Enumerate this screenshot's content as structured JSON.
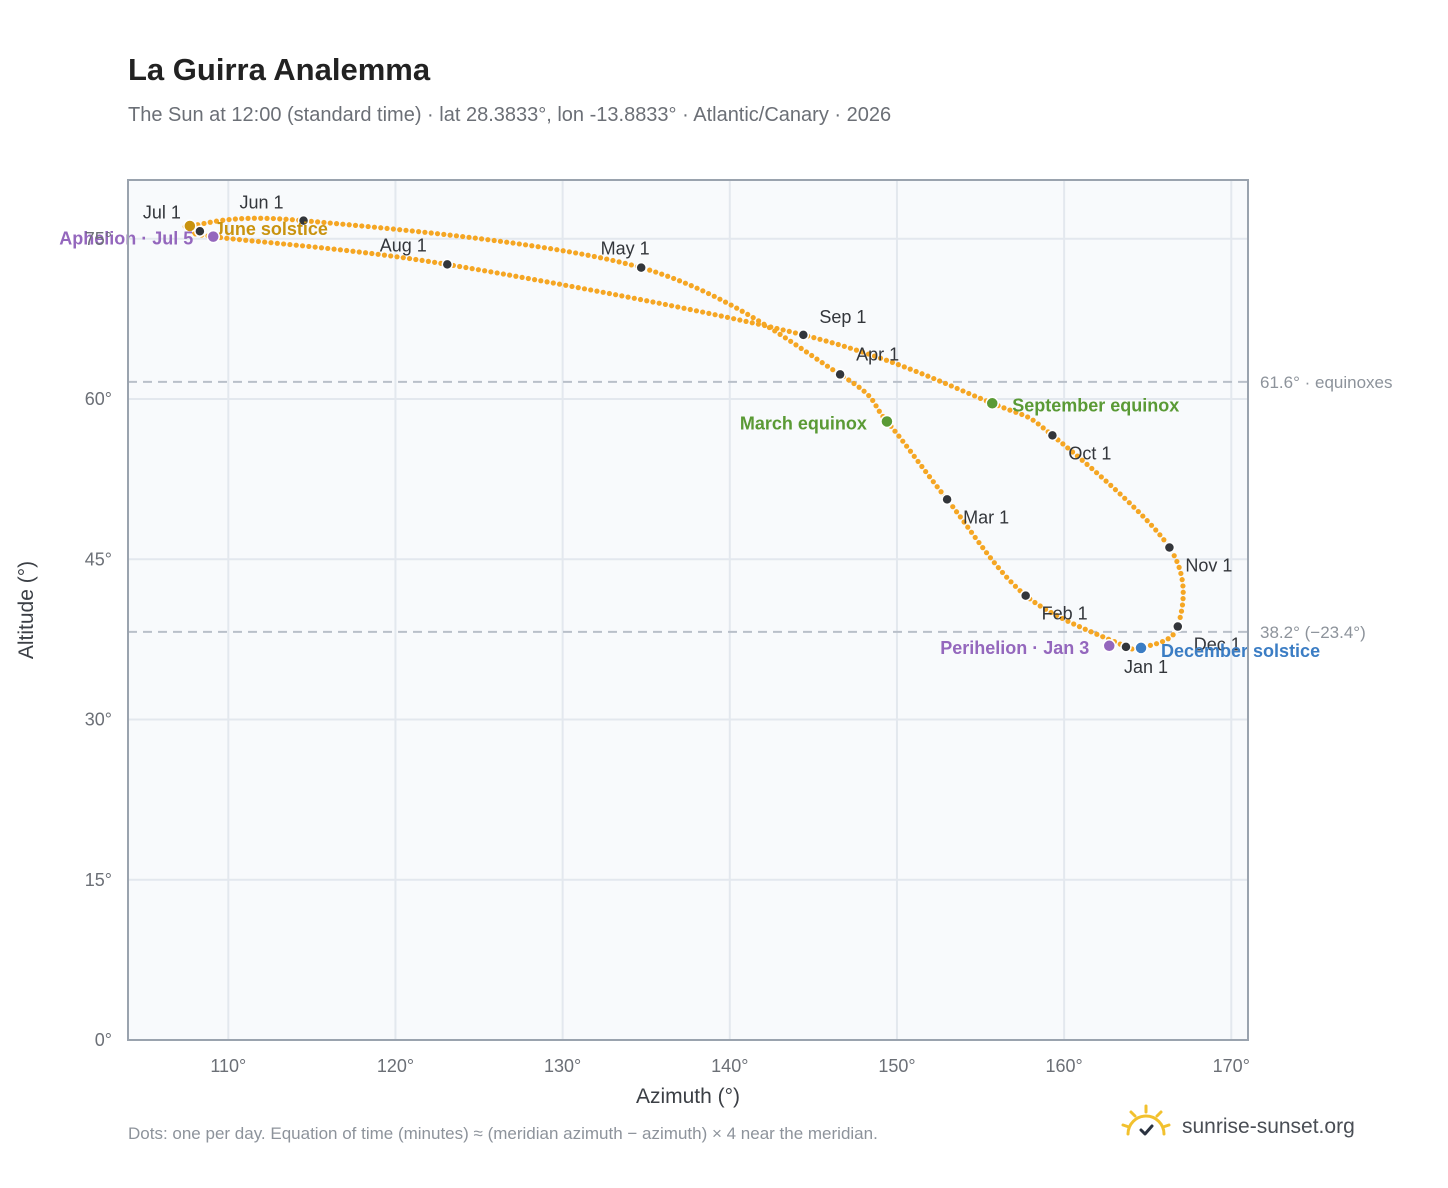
{
  "header": {
    "title": "La Guirra Analemma",
    "subtitle": "The Sun at 12:00 (standard time) · lat 28.3833°, lon -13.8833° · Atlantic/Canary · 2026"
  },
  "footer": {
    "note": "Dots: one per day. Equation of time (minutes) ≈ (meridian azimuth − azimuth) × 4 near the meridian.",
    "brand": "sunrise-sunset.org"
  },
  "colors": {
    "curve": "#f5a623",
    "month_marker": "#33363b",
    "equinox": "#5a9a35",
    "june_solstice": "#c9930f",
    "december_solstice": "#3b7dc4",
    "apsis": "#9467bd",
    "plot_bg": "#f8fafc",
    "grid": "#e3e8ee",
    "frame": "#9aa3ae",
    "reference_line": "#b9c0c9"
  },
  "chart_data": {
    "type": "scatter",
    "title": "La Guirra Analemma",
    "xlabel": "Azimuth (°)",
    "ylabel": "Altitude (°)",
    "xlim": [
      104,
      171
    ],
    "ylim": [
      0,
      80.5
    ],
    "x_ticks": [
      110,
      120,
      130,
      140,
      150,
      160,
      170
    ],
    "x_tick_labels": [
      "110°",
      "120°",
      "130°",
      "140°",
      "150°",
      "160°",
      "170°"
    ],
    "y_ticks": [
      0,
      15,
      30,
      45,
      60,
      75
    ],
    "y_tick_labels": [
      "0°",
      "15°",
      "30°",
      "45°",
      "60°",
      "75°"
    ],
    "grid": true,
    "reference_lines": [
      {
        "y": 61.6,
        "label": "61.6° · equinoxes"
      },
      {
        "y": 38.2,
        "label": "38.2° (−23.4°)"
      }
    ],
    "month_markers": [
      {
        "label": "Jan 1",
        "x": 163.7,
        "y": 36.8
      },
      {
        "label": "Feb 1",
        "x": 157.7,
        "y": 41.6
      },
      {
        "label": "Mar 1",
        "x": 153.0,
        "y": 50.6
      },
      {
        "label": "Apr 1",
        "x": 146.6,
        "y": 62.3
      },
      {
        "label": "May 1",
        "x": 134.7,
        "y": 72.3
      },
      {
        "label": "Jun 1",
        "x": 114.5,
        "y": 76.7
      },
      {
        "label": "Jul 1",
        "x": 108.3,
        "y": 75.7
      },
      {
        "label": "Aug 1",
        "x": 123.1,
        "y": 72.6
      },
      {
        "label": "Sep 1",
        "x": 144.4,
        "y": 66.0
      },
      {
        "label": "Oct 1",
        "x": 159.3,
        "y": 56.6
      },
      {
        "label": "Nov 1",
        "x": 166.3,
        "y": 46.1
      },
      {
        "label": "Dec 1",
        "x": 166.8,
        "y": 38.7
      }
    ],
    "events": [
      {
        "label": "March equinox",
        "x": 149.4,
        "y": 57.9,
        "color": "#5a9a35"
      },
      {
        "label": "June solstice",
        "x": 107.7,
        "y": 76.2,
        "color": "#c9930f"
      },
      {
        "label": "Aphelion · Jul 5",
        "x": 109.1,
        "y": 75.2,
        "color": "#9467bd"
      },
      {
        "label": "September equinox",
        "x": 155.7,
        "y": 59.6,
        "color": "#5a9a35"
      },
      {
        "label": "December solstice",
        "x": 164.6,
        "y": 36.7,
        "color": "#3b7dc4"
      },
      {
        "label": "Perihelion · Jan 3",
        "x": 162.7,
        "y": 36.9,
        "color": "#9467bd"
      }
    ],
    "daily_path_anchors": [
      {
        "x": 163.7,
        "y": 36.8
      },
      {
        "x": 157.7,
        "y": 41.6
      },
      {
        "x": 153.0,
        "y": 50.6
      },
      {
        "x": 149.4,
        "y": 57.9
      },
      {
        "x": 146.6,
        "y": 62.3
      },
      {
        "x": 134.7,
        "y": 72.3
      },
      {
        "x": 114.5,
        "y": 76.7
      },
      {
        "x": 107.7,
        "y": 76.2
      },
      {
        "x": 108.3,
        "y": 75.7
      },
      {
        "x": 109.1,
        "y": 75.2
      },
      {
        "x": 123.1,
        "y": 72.6
      },
      {
        "x": 144.4,
        "y": 66.0
      },
      {
        "x": 155.7,
        "y": 59.6
      },
      {
        "x": 159.3,
        "y": 56.6
      },
      {
        "x": 166.3,
        "y": 46.1
      },
      {
        "x": 166.8,
        "y": 38.7
      },
      {
        "x": 164.6,
        "y": 36.7
      },
      {
        "x": 163.7,
        "y": 36.8
      }
    ]
  }
}
